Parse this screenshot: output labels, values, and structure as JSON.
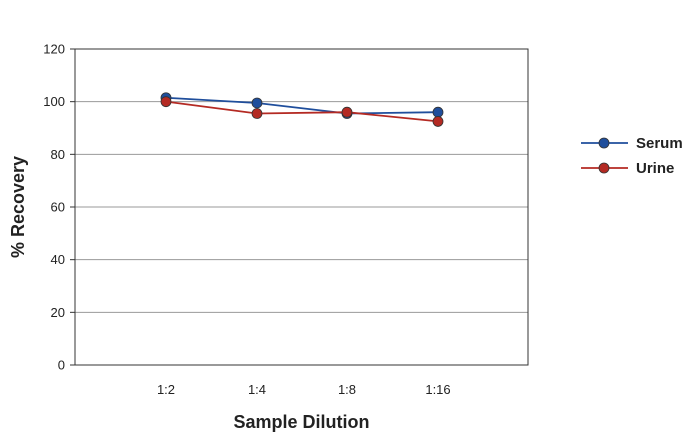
{
  "chart_data": {
    "type": "line",
    "categories": [
      "1:2",
      "1:4",
      "1:8",
      "1:16"
    ],
    "xlabel": "Sample Dilution",
    "ylabel": "% Recovery",
    "ylim": [
      0,
      120
    ],
    "yticks": [
      0,
      20,
      40,
      60,
      80,
      100,
      120
    ],
    "grid": true,
    "legend_position": "right",
    "series": [
      {
        "name": "Serum",
        "color": "#1f4e9c",
        "values": [
          101.5,
          99.5,
          95.5,
          96
        ]
      },
      {
        "name": "Urine",
        "color": "#b42a23",
        "values": [
          100,
          95.5,
          96,
          92.5
        ]
      }
    ]
  }
}
